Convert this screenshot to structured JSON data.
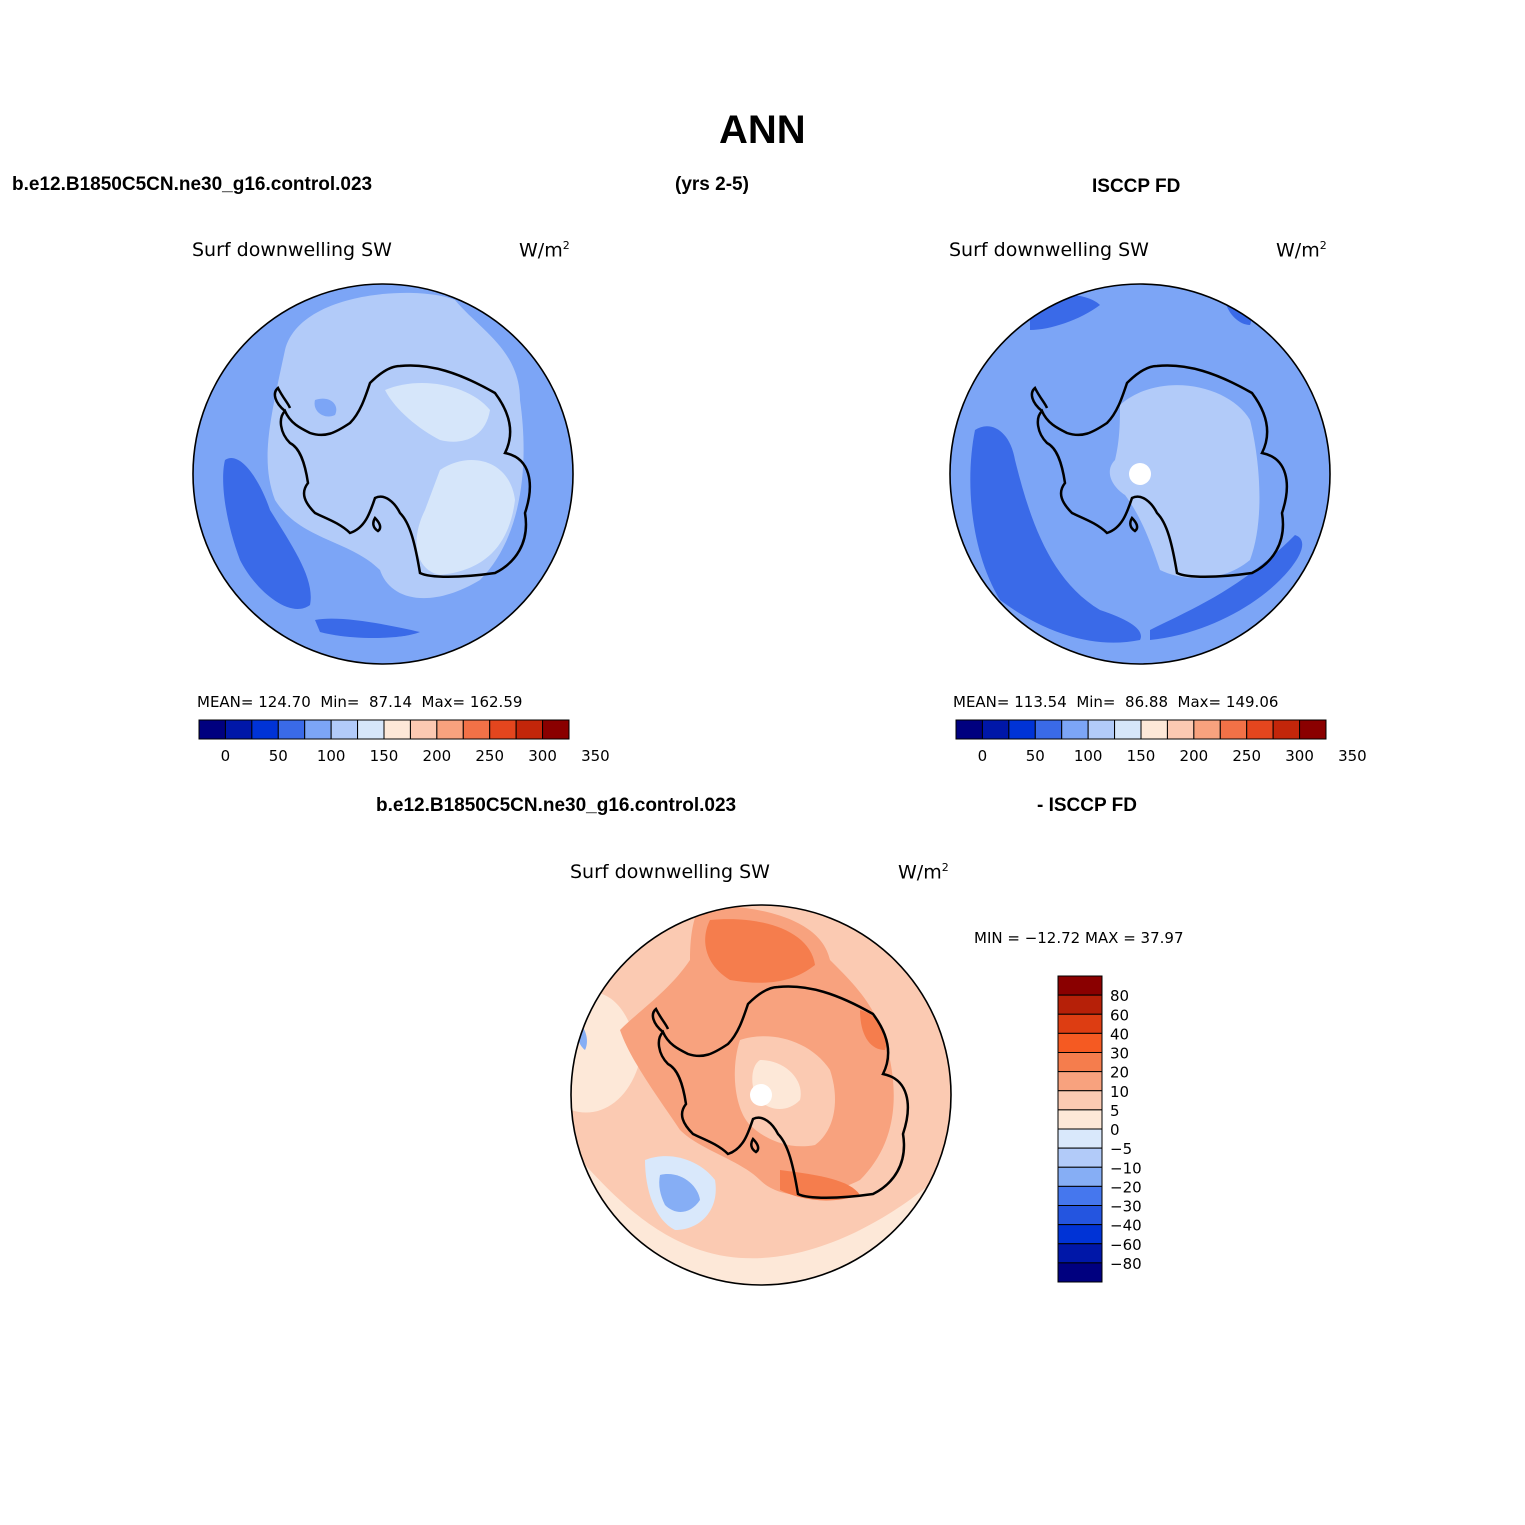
{
  "title": "ANN",
  "top_left_header": "b.e12.B1850C5CN.ne30_g16.control.023",
  "top_center_header": "(yrs 2-5)",
  "top_right_header": "ISCCP FD",
  "bottom_header_left": "b.e12.B1850C5CN.ne30_g16.control.023",
  "bottom_header_right": "- ISCCP FD",
  "colors": {
    "abs_levels": [
      "#00007f",
      "#0017a8",
      "#0033d6",
      "#3a6ae8",
      "#7ca5f6",
      "#b2cbf9",
      "#d6e6fa",
      "#fde8d8",
      "#fcc9b2",
      "#f8a27e",
      "#f27147",
      "#e4461e",
      "#c3260a",
      "#8a0000"
    ],
    "diff_levels": [
      "#00007f",
      "#0017a8",
      "#0033d6",
      "#2455e0",
      "#4577ee",
      "#86aef5",
      "#b2cbf9",
      "#d9e8fb",
      "#fde8d8",
      "#fbcab2",
      "#f8a27e",
      "#f57d4d",
      "#f55a22",
      "#dd3d12",
      "#b62008",
      "#8a0000"
    ]
  },
  "chart_data": [
    {
      "type": "heatmap",
      "projection": "south-polar-stereographic",
      "panel": "model",
      "variable_label": "Surf downwelling SW",
      "units_label": "W/m",
      "units_exp": "2",
      "mean_label": "MEAN=",
      "mean": "124.70",
      "min_label": "Min=",
      "min": "87.14",
      "max_label": "Max=",
      "max": "162.59",
      "colorbar_ticks": [
        "0",
        "50",
        "100",
        "150",
        "200",
        "250",
        "300",
        "350"
      ]
    },
    {
      "type": "heatmap",
      "projection": "south-polar-stereographic",
      "panel": "observations",
      "variable_label": "Surf downwelling SW",
      "units_label": "W/m",
      "units_exp": "2",
      "mean_label": "MEAN=",
      "mean": "113.54",
      "min_label": "Min=",
      "min": "86.88",
      "max_label": "Max=",
      "max": "149.06",
      "colorbar_ticks": [
        "0",
        "50",
        "100",
        "150",
        "200",
        "250",
        "300",
        "350"
      ]
    },
    {
      "type": "heatmap",
      "projection": "south-polar-stereographic",
      "panel": "difference",
      "variable_label": "Surf downwelling SW",
      "units_label": "W/m",
      "units_exp": "2",
      "minmax_text": "MIN = −12.72 MAX =  37.97",
      "colorbar_ticks": [
        "80",
        "60",
        "40",
        "30",
        "20",
        "10",
        "5",
        "0",
        "−5",
        "−10",
        "−20",
        "−30",
        "−40",
        "−60",
        "−80"
      ]
    }
  ]
}
